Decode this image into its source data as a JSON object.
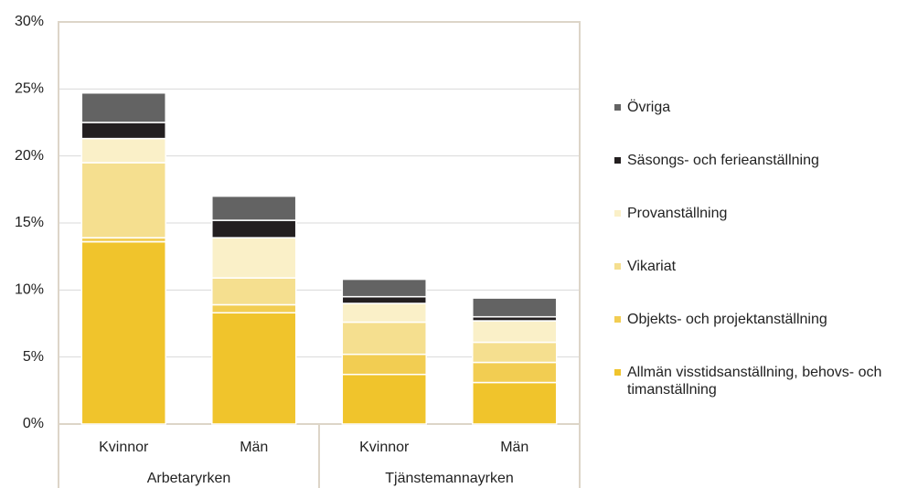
{
  "chart_data": {
    "type": "stacked_bar",
    "categories": [
      "Kvinnor",
      "Män",
      "Kvinnor",
      "Män"
    ],
    "groups": [
      {
        "name": "Arbetaryrken",
        "size": 2
      },
      {
        "name": "Tjänstemannayrken",
        "size": 2
      }
    ],
    "series": [
      {
        "name": "Allmän visstidsanställning, behovs- och timanställning",
        "color": "#f0c42c",
        "values": [
          13.6,
          8.3,
          3.7,
          3.1
        ]
      },
      {
        "name": "Objekts- och projektanställning",
        "color": "#f2cd52",
        "values": [
          0.3,
          0.6,
          1.5,
          1.5
        ]
      },
      {
        "name": "Vikariat",
        "color": "#f5df8f",
        "values": [
          5.6,
          2.0,
          2.4,
          1.5
        ]
      },
      {
        "name": "Provanställning",
        "color": "#faf0c8",
        "values": [
          1.8,
          3.0,
          1.4,
          1.6
        ]
      },
      {
        "name": "Säsongs- och ferieanställning",
        "color": "#231f20",
        "values": [
          1.2,
          1.3,
          0.5,
          0.3
        ]
      },
      {
        "name": "Övriga",
        "color": "#636363",
        "values": [
          2.2,
          1.8,
          1.3,
          1.4
        ]
      }
    ],
    "ylim": [
      0,
      30
    ],
    "yticks": [
      {
        "value": 0,
        "label": "0%"
      },
      {
        "value": 5,
        "label": "5%"
      },
      {
        "value": 10,
        "label": "10%"
      },
      {
        "value": 15,
        "label": "15%"
      },
      {
        "value": 20,
        "label": "20%"
      },
      {
        "value": 25,
        "label": "25%"
      },
      {
        "value": 30,
        "label": "30%"
      }
    ],
    "grid": true,
    "legend": "right"
  }
}
